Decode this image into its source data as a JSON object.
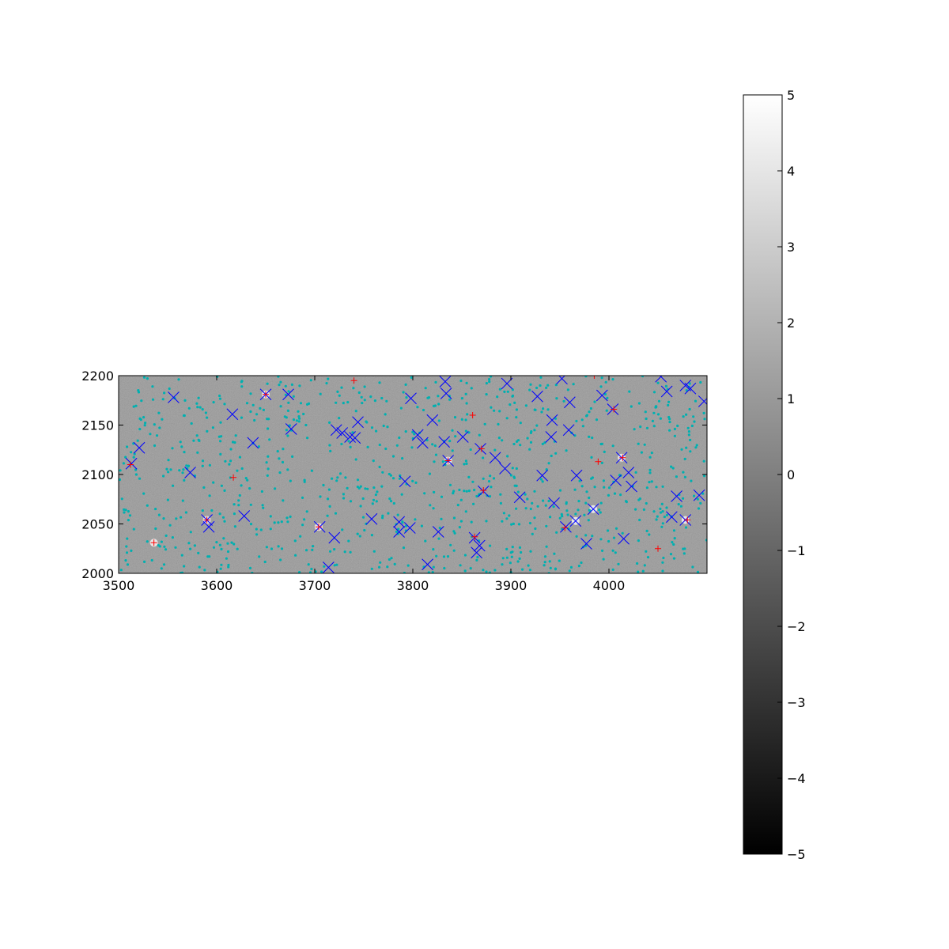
{
  "chart_data": {
    "type": "scatter",
    "background": "astronomical-image-cutout",
    "xlim": [
      3500,
      4100
    ],
    "ylim": [
      2000,
      2200
    ],
    "x_ticks": [
      3500,
      3600,
      3700,
      3800,
      3900,
      4000
    ],
    "y_ticks": [
      2000,
      2050,
      2100,
      2150,
      2200
    ],
    "grid": false,
    "legend": "none",
    "colorbar": {
      "cmap": "gray",
      "range": [
        -5,
        5
      ],
      "ticks": [
        5,
        4,
        3,
        2,
        1,
        0,
        -1,
        -2,
        -3,
        -4,
        -5
      ],
      "tick_labels": [
        "5",
        "4",
        "3",
        "2",
        "1",
        "0",
        "−1",
        "−2",
        "−3",
        "−4",
        "−5"
      ]
    },
    "series": [
      {
        "marker": "x",
        "color": "#0000ff",
        "points": [
          [
            3513,
            2111
          ],
          [
            3521,
            2127
          ],
          [
            3556,
            2178
          ],
          [
            3573,
            2102
          ],
          [
            3590,
            2054
          ],
          [
            3592,
            2047
          ],
          [
            3616,
            2161
          ],
          [
            3628,
            2058
          ],
          [
            3637,
            2132
          ],
          [
            3650,
            2181
          ],
          [
            3673,
            2181
          ],
          [
            3676,
            2146
          ],
          [
            3705,
            2047
          ],
          [
            3714,
            2006
          ],
          [
            3720,
            2036
          ],
          [
            3722,
            2145
          ],
          [
            3728,
            2142
          ],
          [
            3736,
            2138
          ],
          [
            3741,
            2137
          ],
          [
            3744,
            2153
          ],
          [
            3758,
            2055
          ],
          [
            3786,
            2052
          ],
          [
            3786,
            2042
          ],
          [
            3792,
            2093
          ],
          [
            3797,
            2046
          ],
          [
            3798,
            2177
          ],
          [
            3805,
            2140
          ],
          [
            3810,
            2132
          ],
          [
            3815,
            2009
          ],
          [
            3820,
            2155
          ],
          [
            3826,
            2042
          ],
          [
            3832,
            2133
          ],
          [
            3833,
            2194
          ],
          [
            3834,
            2182
          ],
          [
            3836,
            2114
          ],
          [
            3851,
            2138
          ],
          [
            3863,
            2036
          ],
          [
            3865,
            2021
          ],
          [
            3868,
            2028
          ],
          [
            3869,
            2126
          ],
          [
            3872,
            2083
          ],
          [
            3884,
            2117
          ],
          [
            3894,
            2106
          ],
          [
            3896,
            2192
          ],
          [
            3909,
            2077
          ],
          [
            3927,
            2179
          ],
          [
            3932,
            2099
          ],
          [
            3941,
            2138
          ],
          [
            3942,
            2155
          ],
          [
            3944,
            2071
          ],
          [
            3952,
            2197
          ],
          [
            3956,
            2047
          ],
          [
            3959,
            2145
          ],
          [
            3960,
            2173
          ],
          [
            3966,
            2053
          ],
          [
            3967,
            2099
          ],
          [
            3977,
            2030
          ],
          [
            3984,
            2065
          ],
          [
            3993,
            2180
          ],
          [
            4004,
            2166
          ],
          [
            4007,
            2094
          ],
          [
            4013,
            2117
          ],
          [
            4015,
            2035
          ],
          [
            4020,
            2102
          ],
          [
            4023,
            2088
          ],
          [
            4053,
            2199
          ],
          [
            4059,
            2184
          ],
          [
            4064,
            2057
          ],
          [
            4069,
            2078
          ],
          [
            4078,
            2190
          ],
          [
            4078,
            2054
          ],
          [
            4083,
            2187
          ],
          [
            4092,
            2079
          ],
          [
            4097,
            2174
          ]
        ]
      },
      {
        "marker": "+",
        "color": "#ff0000",
        "points": [
          [
            3512,
            2110
          ],
          [
            3536,
            2031
          ],
          [
            3590,
            2054
          ],
          [
            3617,
            2097
          ],
          [
            3650,
            2181
          ],
          [
            3704,
            2047
          ],
          [
            3740,
            2195
          ],
          [
            3836,
            2114
          ],
          [
            3861,
            2160
          ],
          [
            3863,
            2037
          ],
          [
            3870,
            2126
          ],
          [
            3872,
            2084
          ],
          [
            3955,
            2046
          ],
          [
            3985,
            2200
          ],
          [
            3989,
            2113
          ],
          [
            4005,
            2166
          ],
          [
            4014,
            2117
          ],
          [
            4050,
            2025
          ],
          [
            4080,
            2054
          ]
        ]
      },
      {
        "marker": "o",
        "color": "#00b0b0",
        "note_count": 900
      }
    ]
  }
}
